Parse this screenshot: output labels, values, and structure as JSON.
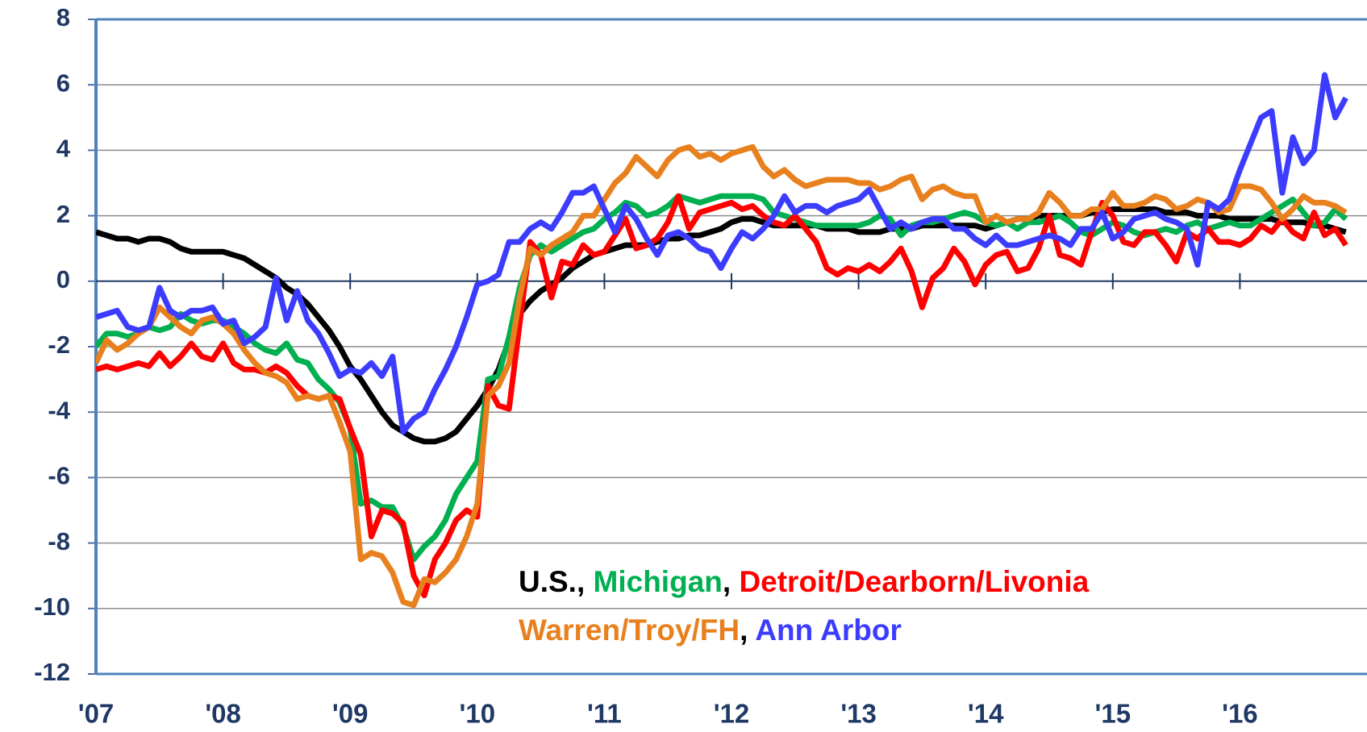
{
  "chart_data": {
    "type": "line",
    "categories": [
      "'07",
      null,
      null,
      null,
      null,
      null,
      null,
      null,
      null,
      null,
      null,
      null,
      "'08",
      null,
      null,
      null,
      null,
      null,
      null,
      null,
      null,
      null,
      null,
      null,
      "'09",
      null,
      null,
      null,
      null,
      null,
      null,
      null,
      null,
      null,
      null,
      null,
      "'10",
      null,
      null,
      null,
      null,
      null,
      null,
      null,
      null,
      null,
      null,
      null,
      "'11",
      null,
      null,
      null,
      null,
      null,
      null,
      null,
      null,
      null,
      null,
      null,
      "'12",
      null,
      null,
      null,
      null,
      null,
      null,
      null,
      null,
      null,
      null,
      null,
      "'13",
      null,
      null,
      null,
      null,
      null,
      null,
      null,
      null,
      null,
      null,
      null,
      "'14",
      null,
      null,
      null,
      null,
      null,
      null,
      null,
      null,
      null,
      null,
      null,
      "'15",
      null,
      null,
      null,
      null,
      null,
      null,
      null,
      null,
      null,
      null,
      null,
      "'16",
      null,
      null,
      null,
      null,
      null,
      null,
      null,
      null,
      null,
      null
    ],
    "ylim": [
      -12,
      8
    ],
    "yticks": [
      -12,
      -10,
      -8,
      -6,
      -4,
      -2,
      0,
      2,
      4,
      6,
      8
    ],
    "grid": true,
    "legend_separator": ", ",
    "series": [
      {
        "name": "U.S.",
        "color": "#000000",
        "values": [
          1.5,
          1.4,
          1.3,
          1.3,
          1.2,
          1.3,
          1.3,
          1.2,
          1.0,
          0.9,
          0.9,
          0.9,
          0.9,
          0.8,
          0.7,
          0.5,
          0.3,
          0.1,
          -0.2,
          -0.4,
          -0.7,
          -1.1,
          -1.5,
          -2.0,
          -2.6,
          -3.0,
          -3.5,
          -4.0,
          -4.4,
          -4.6,
          -4.8,
          -4.9,
          -4.9,
          -4.8,
          -4.6,
          -4.2,
          -3.8,
          -3.3,
          -2.7,
          -1.8,
          -1.0,
          -0.6,
          -0.3,
          -0.1,
          0.1,
          0.4,
          0.6,
          0.8,
          0.9,
          1.0,
          1.1,
          1.1,
          1.1,
          1.2,
          1.3,
          1.3,
          1.4,
          1.4,
          1.5,
          1.6,
          1.8,
          1.9,
          1.9,
          1.8,
          1.7,
          1.7,
          1.7,
          1.7,
          1.7,
          1.6,
          1.6,
          1.6,
          1.5,
          1.5,
          1.5,
          1.6,
          1.6,
          1.6,
          1.7,
          1.7,
          1.7,
          1.7,
          1.7,
          1.7,
          1.6,
          1.7,
          1.8,
          1.9,
          1.9,
          2.0,
          2.0,
          2.0,
          2.0,
          2.0,
          2.1,
          2.1,
          2.2,
          2.2,
          2.2,
          2.2,
          2.2,
          2.1,
          2.1,
          2.1,
          2.0,
          2.0,
          2.0,
          1.9,
          1.9,
          1.9,
          1.9,
          1.9,
          1.8,
          1.8,
          1.8,
          1.7,
          1.7,
          1.6,
          1.5
        ]
      },
      {
        "name": "Michigan",
        "color": "#00b050",
        "values": [
          -2.0,
          -1.6,
          -1.6,
          -1.7,
          -1.6,
          -1.4,
          -1.5,
          -1.4,
          -1.0,
          -1.2,
          -1.3,
          -1.2,
          -1.2,
          -1.4,
          -1.6,
          -1.9,
          -2.1,
          -2.2,
          -1.9,
          -2.4,
          -2.5,
          -3.0,
          -3.3,
          -3.7,
          -4.5,
          -6.8,
          -6.7,
          -6.9,
          -6.9,
          -7.5,
          -8.5,
          -8.1,
          -7.8,
          -7.3,
          -6.5,
          -6.0,
          -5.5,
          -3.0,
          -2.9,
          -1.7,
          -0.2,
          0.8,
          1.1,
          0.9,
          1.1,
          1.3,
          1.5,
          1.6,
          1.9,
          2.1,
          2.4,
          2.3,
          2.0,
          2.1,
          2.3,
          2.6,
          2.5,
          2.4,
          2.5,
          2.6,
          2.6,
          2.6,
          2.6,
          2.5,
          2.1,
          2.0,
          1.9,
          1.8,
          1.7,
          1.7,
          1.7,
          1.7,
          1.7,
          1.8,
          2.0,
          1.9,
          1.4,
          1.7,
          1.8,
          1.8,
          1.9,
          2.0,
          2.1,
          2.0,
          1.8,
          1.7,
          1.8,
          1.6,
          1.8,
          1.8,
          1.9,
          2.0,
          1.8,
          1.5,
          1.4,
          1.6,
          1.8,
          1.7,
          1.5,
          1.4,
          1.5,
          1.6,
          1.5,
          1.7,
          1.8,
          1.6,
          1.7,
          1.8,
          1.7,
          1.7,
          1.9,
          2.1,
          2.3,
          2.5,
          2.1,
          1.7,
          1.8,
          2.2,
          1.9
        ]
      },
      {
        "name": "Detroit/Dearborn/Livonia",
        "color": "#ff0000",
        "values": [
          -2.7,
          -2.6,
          -2.7,
          -2.6,
          -2.5,
          -2.6,
          -2.2,
          -2.6,
          -2.3,
          -1.9,
          -2.3,
          -2.4,
          -1.9,
          -2.5,
          -2.7,
          -2.7,
          -2.8,
          -2.6,
          -2.8,
          -3.2,
          -3.5,
          -3.6,
          -3.5,
          -3.6,
          -4.5,
          -5.3,
          -7.8,
          -7.0,
          -7.1,
          -7.4,
          -9.0,
          -9.6,
          -8.5,
          -8.0,
          -7.3,
          -7.0,
          -7.2,
          -3.2,
          -3.8,
          -3.9,
          -1.3,
          1.2,
          0.8,
          -0.5,
          0.6,
          0.5,
          1.1,
          0.8,
          0.9,
          1.4,
          1.9,
          1.0,
          1.1,
          1.3,
          1.8,
          2.6,
          1.6,
          2.1,
          2.2,
          2.3,
          2.4,
          2.2,
          2.3,
          2.0,
          1.8,
          1.7,
          2.0,
          1.6,
          1.2,
          0.4,
          0.2,
          0.4,
          0.3,
          0.5,
          0.3,
          0.6,
          1.0,
          0.3,
          -0.8,
          0.1,
          0.4,
          1.0,
          0.6,
          -0.1,
          0.5,
          0.8,
          0.9,
          0.3,
          0.4,
          1.0,
          2.0,
          0.8,
          0.7,
          0.5,
          1.5,
          2.4,
          2.0,
          1.2,
          1.1,
          1.5,
          1.5,
          1.1,
          0.6,
          1.5,
          1.3,
          1.6,
          1.2,
          1.2,
          1.1,
          1.3,
          1.7,
          1.5,
          1.9,
          1.5,
          1.3,
          2.1,
          1.4,
          1.6,
          1.1
        ]
      },
      {
        "name": "Warren/Troy/FH",
        "color": "#e8801e",
        "values": [
          -2.5,
          -1.8,
          -2.1,
          -1.9,
          -1.6,
          -1.4,
          -0.8,
          -1.1,
          -1.4,
          -1.6,
          -1.2,
          -1.1,
          -1.3,
          -1.6,
          -2.1,
          -2.5,
          -2.8,
          -2.9,
          -3.1,
          -3.6,
          -3.5,
          -3.6,
          -3.5,
          -4.3,
          -5.2,
          -8.5,
          -8.3,
          -8.4,
          -8.9,
          -9.8,
          -9.9,
          -9.1,
          -9.2,
          -8.9,
          -8.5,
          -7.8,
          -6.8,
          -3.5,
          -3.2,
          -2.5,
          -0.5,
          1.0,
          0.8,
          1.1,
          1.3,
          1.5,
          2.0,
          2.0,
          2.5,
          3.0,
          3.3,
          3.8,
          3.5,
          3.2,
          3.7,
          4.0,
          4.1,
          3.8,
          3.9,
          3.7,
          3.9,
          4.0,
          4.1,
          3.5,
          3.2,
          3.4,
          3.1,
          2.9,
          3.0,
          3.1,
          3.1,
          3.1,
          3.0,
          3.0,
          2.8,
          2.9,
          3.1,
          3.2,
          2.5,
          2.8,
          2.9,
          2.7,
          2.6,
          2.6,
          1.8,
          2.0,
          1.8,
          1.9,
          1.9,
          2.1,
          2.7,
          2.4,
          2.0,
          2.0,
          2.2,
          2.2,
          2.7,
          2.3,
          2.3,
          2.4,
          2.6,
          2.5,
          2.2,
          2.3,
          2.5,
          2.4,
          2.1,
          2.2,
          2.9,
          2.9,
          2.8,
          2.4,
          1.9,
          2.2,
          2.6,
          2.4,
          2.4,
          2.3,
          2.1
        ]
      },
      {
        "name": "Ann Arbor",
        "color": "#3c3cff",
        "values": [
          -1.1,
          -1.0,
          -0.9,
          -1.4,
          -1.5,
          -1.4,
          -0.2,
          -0.9,
          -1.1,
          -0.9,
          -0.9,
          -0.8,
          -1.3,
          -1.2,
          -1.9,
          -1.7,
          -1.4,
          0.1,
          -1.2,
          -0.3,
          -1.2,
          -1.6,
          -2.2,
          -2.9,
          -2.7,
          -2.8,
          -2.5,
          -2.9,
          -2.3,
          -4.6,
          -4.2,
          -4.0,
          -3.3,
          -2.7,
          -2.0,
          -1.1,
          -0.1,
          0.0,
          0.2,
          1.2,
          1.2,
          1.6,
          1.8,
          1.6,
          2.1,
          2.7,
          2.7,
          2.9,
          2.2,
          1.5,
          2.3,
          1.9,
          1.3,
          0.8,
          1.4,
          1.5,
          1.3,
          1.0,
          0.9,
          0.4,
          1.0,
          1.5,
          1.3,
          1.6,
          2.0,
          2.6,
          2.1,
          2.3,
          2.3,
          2.1,
          2.3,
          2.4,
          2.5,
          2.8,
          2.2,
          1.6,
          1.8,
          1.6,
          1.8,
          1.9,
          1.9,
          1.6,
          1.6,
          1.3,
          1.1,
          1.4,
          1.1,
          1.1,
          1.2,
          1.3,
          1.4,
          1.3,
          1.1,
          1.6,
          1.6,
          2.1,
          1.3,
          1.5,
          1.9,
          2.0,
          2.1,
          1.9,
          1.8,
          1.6,
          0.5,
          2.4,
          2.2,
          2.5,
          3.4,
          4.2,
          5.0,
          5.2,
          2.7,
          4.4,
          3.6,
          4.0,
          6.3,
          5.0,
          5.6
        ]
      }
    ]
  }
}
